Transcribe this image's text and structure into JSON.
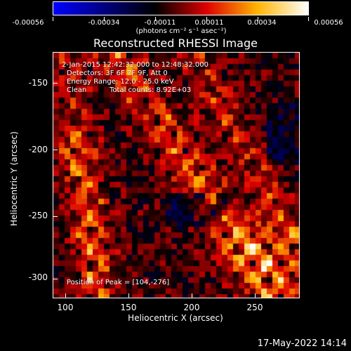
{
  "colorbar": {
    "tick_labels": [
      "-0.00056",
      "-0.00034",
      "-0.00011",
      "0.00011",
      "0.00034",
      "0.00056"
    ],
    "units": "(photons cm⁻² s⁻¹ asec⁻²)",
    "colors": [
      "#0000ff",
      "#000000",
      "#ff0000",
      "#ffff00",
      "#ffffff"
    ]
  },
  "title": "Reconstructed RHESSI Image",
  "annotations": {
    "time_range": "2-Jan-2015 12:42:32.000 to 12:48:32.000",
    "detectors": "Detectors: 3F 6F 7F 9F, Att 0",
    "energy": "Energy Range: 12.0 - 25.0 keV",
    "method": "Clean",
    "counts": "Total counts: 8.92E+03",
    "peak": "Position of Peak = [104,-276]"
  },
  "axes": {
    "xlabel": "Heliocentric X (arcsec)",
    "ylabel": "Heliocentric Y (arcsec)",
    "xticks": [
      "100",
      "150",
      "200",
      "250"
    ],
    "yticks": [
      "-150",
      "-200",
      "-250",
      "-300"
    ]
  },
  "footer": {
    "timestamp": "17-May-2022 14:14"
  }
}
